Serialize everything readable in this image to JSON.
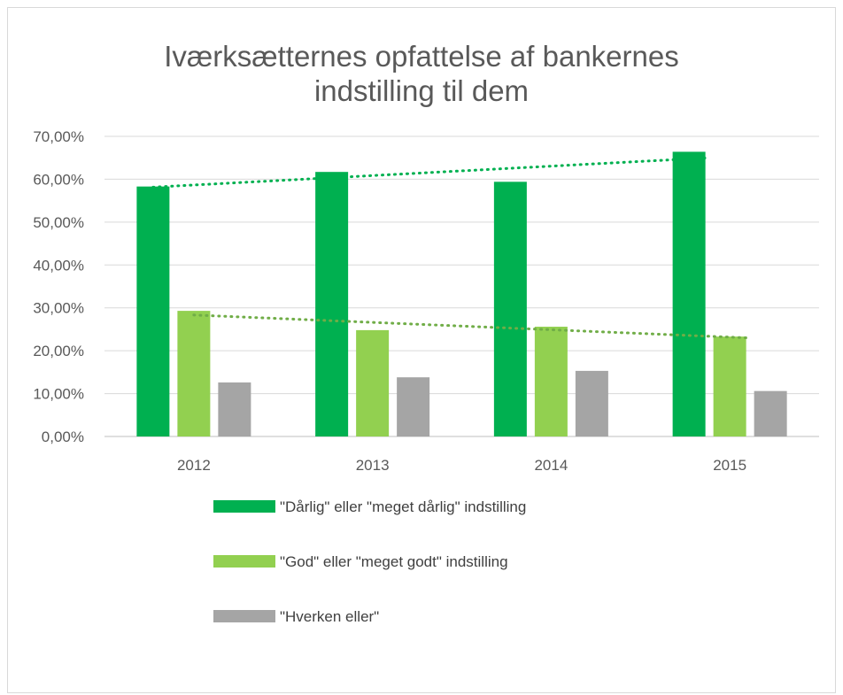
{
  "chart_data": {
    "type": "bar",
    "title_lines": [
      "Iværksætternes opfattelse af bankernes",
      "indstilling til dem"
    ],
    "categories": [
      "2012",
      "2013",
      "2014",
      "2015"
    ],
    "series": [
      {
        "name": "\"Dårlig\" eller \"meget dårlig\" indstilling",
        "color": "#00b050",
        "values": [
          58.3,
          61.7,
          59.4,
          66.4
        ]
      },
      {
        "name": "\"God\" eller \"meget godt\" indstilling",
        "color": "#92d050",
        "values": [
          29.3,
          24.8,
          25.6,
          23.3
        ]
      },
      {
        "name": "\"Hverken eller\"",
        "color": "#a5a5a5",
        "values": [
          12.6,
          13.8,
          15.3,
          10.6
        ]
      }
    ],
    "trendlines": [
      {
        "series_index": 0,
        "type": "linear",
        "style": "dotted",
        "color": "#00b050"
      },
      {
        "series_index": 1,
        "type": "linear",
        "style": "dotted",
        "color": "#70ad47"
      }
    ],
    "ylim": [
      0,
      70
    ],
    "yticks": [
      "0,00%",
      "10,00%",
      "20,00%",
      "30,00%",
      "40,00%",
      "50,00%",
      "60,00%",
      "70,00%"
    ],
    "xlabel": "",
    "ylabel": "",
    "grid": true,
    "legend_position": "bottom"
  }
}
